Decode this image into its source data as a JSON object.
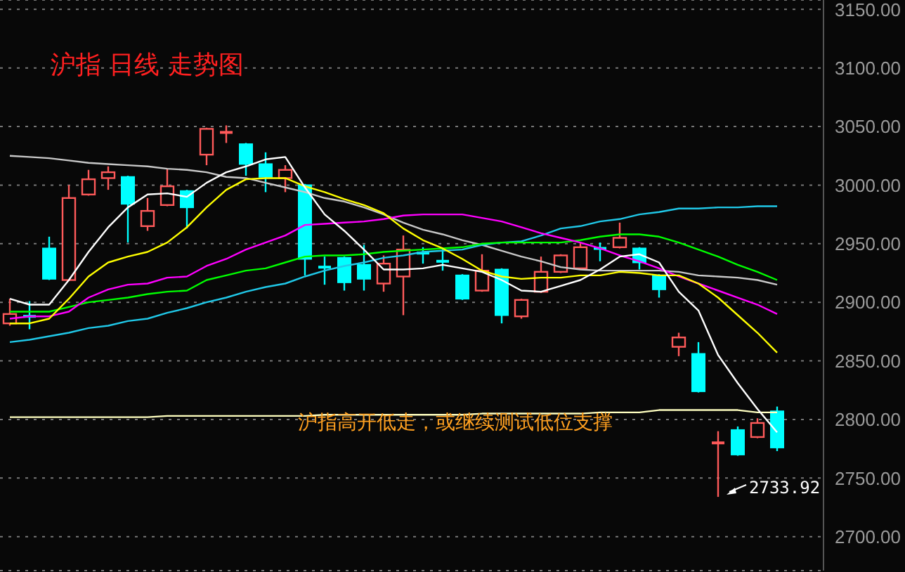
{
  "chart_data": {
    "type": "candlestick",
    "title": "沪指 日线 走势图",
    "categories": [
      null,
      null,
      null,
      null,
      null,
      null,
      null,
      null,
      null,
      null,
      null,
      null,
      null,
      null,
      null,
      null,
      null,
      null,
      null,
      null,
      null,
      null,
      null,
      null,
      null,
      null,
      null,
      null,
      null,
      null,
      null,
      null,
      null,
      null,
      null,
      null,
      null,
      null,
      null,
      null
    ],
    "ohlc": [
      [
        2882,
        2903,
        2880,
        2890
      ],
      [
        2888,
        2901,
        2877,
        2887
      ],
      [
        2946,
        2956,
        2919,
        2920
      ],
      [
        2919,
        3000,
        2918,
        2989
      ],
      [
        2992,
        3013,
        2991,
        3005
      ],
      [
        3006,
        3016,
        2996,
        3011
      ],
      [
        3007,
        3008,
        2951,
        2984
      ],
      [
        2965,
        2989,
        2961,
        2978
      ],
      [
        2983,
        3014,
        2982,
        2999
      ],
      [
        2995,
        2996,
        2963,
        2981
      ],
      [
        3026,
        3049,
        3017,
        3048
      ],
      [
        3044,
        3051,
        3036,
        3045
      ],
      [
        3035,
        3036,
        3008,
        3018
      ],
      [
        3018,
        3028,
        2994,
        3007
      ],
      [
        3006,
        3017,
        2994,
        3013
      ],
      [
        3000,
        3001,
        2923,
        2937
      ],
      [
        2930,
        2939,
        2915,
        2929
      ],
      [
        2938,
        2939,
        2910,
        2917
      ],
      [
        2932,
        2949,
        2910,
        2920
      ],
      [
        2916,
        2940,
        2909,
        2933
      ],
      [
        2922,
        2957,
        2889,
        2945
      ],
      [
        2942,
        2947,
        2933,
        2941
      ],
      [
        2935,
        2946,
        2927,
        2934
      ],
      [
        2923,
        2924,
        2902,
        2903
      ],
      [
        2910,
        2941,
        2909,
        2927
      ],
      [
        2928,
        2929,
        2882,
        2889
      ],
      [
        2888,
        2903,
        2886,
        2902
      ],
      [
        2909,
        2939,
        2908,
        2926
      ],
      [
        2926,
        2941,
        2925,
        2940
      ],
      [
        2929,
        2951,
        2928,
        2947
      ],
      [
        2946,
        2951,
        2935,
        2945
      ],
      [
        2947,
        2968,
        2946,
        2955
      ],
      [
        2946,
        2947,
        2928,
        2934
      ],
      [
        2923,
        2924,
        2904,
        2911
      ],
      [
        2862,
        2874,
        2854,
        2870
      ],
      [
        2856,
        2866,
        2823,
        2824
      ],
      [
        2779,
        2790,
        2733.92,
        2780
      ],
      [
        2791,
        2794,
        2769,
        2770
      ],
      [
        2785,
        2801,
        2784,
        2797
      ],
      [
        2807,
        2811,
        2773,
        2776
      ]
    ],
    "colors": [
      "#ff5a5a",
      "#00ffff",
      "#00ffff",
      "#ff5a5a",
      "#ff5a5a",
      "#ff5a5a",
      "#00ffff",
      "#ff5a5a",
      "#ff5a5a",
      "#00ffff",
      "#ff5a5a",
      "#ff5a5a",
      "#00ffff",
      "#00ffff",
      "#ff5a5a",
      "#00ffff",
      "#00ffff",
      "#00ffff",
      "#00ffff",
      "#ff5a5a",
      "#ff5a5a",
      "#00ffff",
      "#00ffff",
      "#00ffff",
      "#ff5a5a",
      "#00ffff",
      "#ff5a5a",
      "#ff5a5a",
      "#ff5a5a",
      "#ff5a5a",
      "#00ffff",
      "#ff5a5a",
      "#00ffff",
      "#00ffff",
      "#ff5a5a",
      "#00ffff",
      "#ff5a5a",
      "#00ffff",
      "#ff5a5a",
      "#00ffff"
    ],
    "series": [
      {
        "type": "line",
        "color": "#c8c8c8",
        "values": [
          3025,
          3024,
          3023,
          3021,
          3019,
          3018,
          3017,
          3016,
          3014,
          3013,
          3011,
          3007,
          3006,
          3002,
          2998,
          2994,
          2989,
          2986,
          2981,
          2975,
          2968,
          2962,
          2958,
          2953,
          2949,
          2944,
          2939,
          2935,
          2930,
          2928,
          2927,
          2927,
          2927,
          2927,
          2926,
          2923,
          2922,
          2921,
          2919,
          2915
        ]
      },
      {
        "type": "line",
        "color": "#ffffc0",
        "values": [
          2802,
          2802,
          2802,
          2802,
          2802,
          2802,
          2802,
          2802,
          2803,
          2803,
          2803,
          2803,
          2803,
          2803,
          2803,
          2803,
          2804,
          2804,
          2804,
          2804,
          2804,
          2804,
          2804,
          2804,
          2805,
          2805,
          2805,
          2805,
          2805,
          2805,
          2806,
          2806,
          2806,
          2808,
          2808,
          2808,
          2808,
          2808,
          2806,
          2806
        ]
      },
      {
        "type": "line",
        "color": "#20c8e8",
        "values": [
          2866,
          2868,
          2871,
          2874,
          2878,
          2880,
          2884,
          2886,
          2891,
          2895,
          2900,
          2904,
          2909,
          2913,
          2916,
          2922,
          2927,
          2931,
          2934,
          2938,
          2940,
          2943,
          2944,
          2945,
          2949,
          2951,
          2952,
          2957,
          2963,
          2965,
          2969,
          2971,
          2975,
          2977,
          2980,
          2980,
          2981,
          2981,
          2982,
          2982
        ]
      },
      {
        "type": "line",
        "color": "#00ff00",
        "values": [
          2892,
          2892,
          2892,
          2896,
          2900,
          2902,
          2904,
          2907,
          2909,
          2910,
          2919,
          2923,
          2927,
          2929,
          2934,
          2939,
          2940,
          2940,
          2941,
          2943,
          2944,
          2945,
          2946,
          2947,
          2950,
          2951,
          2951,
          2951,
          2951,
          2953,
          2956,
          2958,
          2958,
          2956,
          2951,
          2945,
          2939,
          2932,
          2926,
          2919
        ]
      },
      {
        "type": "line",
        "color": "#ff00ff",
        "values": [
          2886,
          2888,
          2888,
          2892,
          2904,
          2911,
          2915,
          2916,
          2921,
          2922,
          2931,
          2937,
          2945,
          2951,
          2957,
          2966,
          2967,
          2968,
          2969,
          2971,
          2974,
          2975,
          2975,
          2975,
          2972,
          2969,
          2964,
          2959,
          2955,
          2951,
          2946,
          2940,
          2935,
          2929,
          2922,
          2916,
          2910,
          2904,
          2898,
          2890
        ]
      },
      {
        "type": "line",
        "color": "#ffff00",
        "values": [
          2882,
          2882,
          2886,
          2903,
          2922,
          2934,
          2939,
          2943,
          2951,
          2964,
          2981,
          2996,
          3005,
          3006,
          3006,
          2999,
          2994,
          2988,
          2983,
          2976,
          2963,
          2953,
          2946,
          2937,
          2927,
          2922,
          2920,
          2921,
          2921,
          2923,
          2923,
          2926,
          2925,
          2923,
          2923,
          2916,
          2904,
          2889,
          2874,
          2857
        ]
      },
      {
        "type": "line",
        "color": "#ffffff",
        "values": [
          2903,
          2898,
          2898,
          2919,
          2943,
          2964,
          2981,
          2992,
          2993,
          2990,
          3002,
          3011,
          3016,
          3022,
          3024,
          2998,
          2975,
          2961,
          2945,
          2928,
          2928,
          2929,
          2932,
          2929,
          2926,
          2919,
          2910,
          2909,
          2914,
          2919,
          2928,
          2939,
          2941,
          2934,
          2909,
          2893,
          2855,
          2831,
          2809,
          2789
        ]
      }
    ],
    "annotations": [
      "沪指高开低走，或继续测试低位支撑",
      "2733.92"
    ],
    "ylim": [
      2671,
      3158
    ],
    "yticks": [
      {
        "value": 2700,
        "label": "2700.00"
      },
      {
        "value": 2750,
        "label": "2750.00"
      },
      {
        "value": 2800,
        "label": "2800.00"
      },
      {
        "value": 2850,
        "label": "2850.00"
      },
      {
        "value": 2900,
        "label": "2900.00"
      },
      {
        "value": 2950,
        "label": "2950.00"
      },
      {
        "value": 3000,
        "label": "3000.00"
      },
      {
        "value": 3050,
        "label": "3050.00"
      },
      {
        "value": 3100,
        "label": "3100.00"
      },
      {
        "value": 3150,
        "label": "3150.00"
      }
    ],
    "grid": "y",
    "tick_labels": "y"
  }
}
